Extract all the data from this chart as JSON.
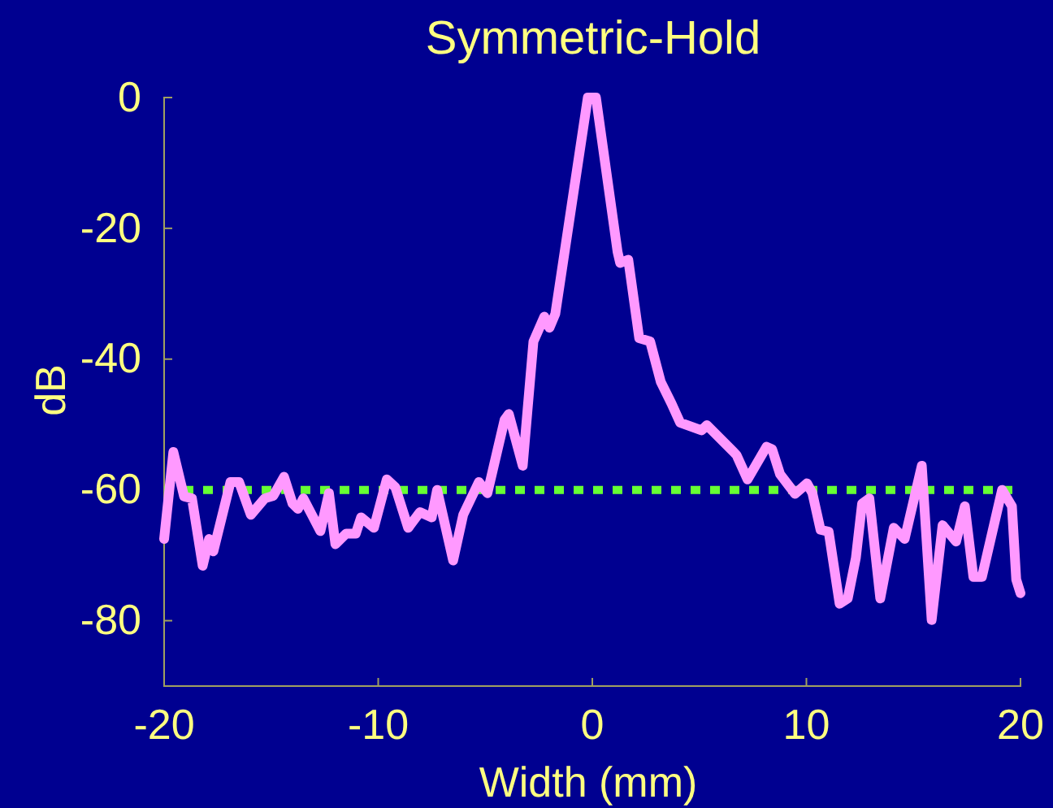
{
  "chart_data": {
    "type": "line",
    "title": "Symmetric-Hold",
    "xlabel": "Width (mm)",
    "ylabel": "dB",
    "xlim": [
      -20,
      20
    ],
    "xticks": [
      -20,
      -10,
      0,
      10,
      20
    ],
    "ylim": [
      -90,
      0
    ],
    "yticks": [
      -80,
      -60,
      -40,
      -20,
      0
    ],
    "grid": false,
    "line_style": "solid",
    "marker": "none",
    "ref_lines": [
      {
        "axis": "y",
        "value": -60,
        "label": null,
        "color": "#66ff33",
        "line_style": "dotted"
      }
    ],
    "series": [
      {
        "color": "#ff99ff",
        "x": [
          -20,
          -19.57,
          -19.07,
          -18.7,
          -18.2,
          -17.9,
          -17.7,
          -16.9,
          -16.5,
          -15.95,
          -15.3,
          -14.9,
          -14.4,
          -14.0,
          -13.75,
          -13.5,
          -13.1,
          -12.7,
          -12.3,
          -12.0,
          -11.5,
          -11.05,
          -10.8,
          -10.2,
          -9.6,
          -9.2,
          -8.6,
          -8.05,
          -7.5,
          -7.25,
          -6.5,
          -6.03,
          -5.3,
          -4.9,
          -4.1,
          -3.9,
          -3.25,
          -2.75,
          -2.24,
          -2.0,
          -1.73,
          -0.21,
          0.17,
          1.18,
          1.3,
          1.68,
          2.19,
          2.7,
          3.2,
          3.7,
          4.1,
          5.1,
          5.35,
          6.6,
          6.74,
          7.25,
          8.14,
          8.4,
          8.77,
          9.47,
          10.03,
          10.28,
          10.66,
          11.04,
          11.55,
          11.93,
          12.31,
          12.6,
          12.94,
          13.45,
          14.08,
          14.59,
          15.39,
          15.85,
          16.36,
          16.99,
          17.4,
          17.8,
          18.2,
          19.14,
          19.6,
          19.8,
          20
        ],
        "values": [
          -67.5,
          -54.2,
          -61,
          -61.3,
          -71.6,
          -67.5,
          -69.4,
          -58.8,
          -58.8,
          -63.8,
          -61.3,
          -60.9,
          -58,
          -62.1,
          -62.9,
          -61.3,
          -63.8,
          -66.3,
          -60.5,
          -68.3,
          -66.7,
          -66.7,
          -64.2,
          -65.8,
          -58.4,
          -59.6,
          -65.8,
          -63.4,
          -64.2,
          -60,
          -70.8,
          -63.8,
          -58.8,
          -60.5,
          -49.3,
          -48.4,
          -56.3,
          -37.3,
          -33.5,
          -35.2,
          -33.1,
          0,
          0,
          -23.6,
          -25.3,
          -24.8,
          -36.8,
          -37.3,
          -43.5,
          -46.8,
          -49.7,
          -50.9,
          -50.1,
          -54.2,
          -54.7,
          -58.4,
          -53.4,
          -53.8,
          -57.6,
          -60.6,
          -59,
          -60.5,
          -66.1,
          -66.4,
          -77.4,
          -76.6,
          -70.4,
          -62.1,
          -61.3,
          -76.6,
          -65.8,
          -67.5,
          -56.3,
          -79.9,
          -65.4,
          -67.9,
          -62.5,
          -73.3,
          -73.3,
          -60,
          -62.5,
          -73.7,
          -75.8
        ]
      }
    ]
  }
}
